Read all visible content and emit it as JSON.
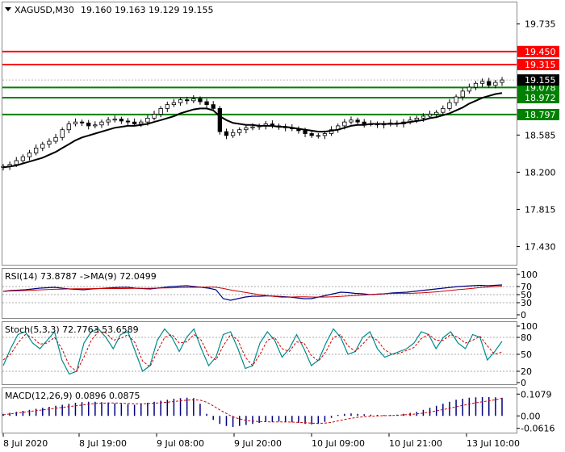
{
  "chart_data": {
    "type": "candlestick",
    "symbol_title": "XAGUSD,M30",
    "ohlc_text": "19.160 19.163 19.129 19.155",
    "time_labels": [
      "8 Jul 2020",
      "8 Jul 19:00",
      "9 Jul 08:00",
      "9 Jul 20:00",
      "10 Jul 09:00",
      "10 Jul 21:00",
      "13 Jul 10:00"
    ],
    "price_axis": {
      "ticks": [
        "19.735",
        "18.585",
        "18.200",
        "17.815",
        "17.430"
      ],
      "tick_values": [
        19.735,
        18.585,
        18.2,
        17.815,
        17.43
      ],
      "ylim": [
        17.25,
        19.95
      ]
    },
    "levels": [
      {
        "label": "19.450",
        "value": 19.45,
        "color": "#ff0000"
      },
      {
        "label": "19.315",
        "value": 19.315,
        "color": "#ff0000"
      },
      {
        "label": "19.078",
        "value": 19.078,
        "color": "#008000"
      },
      {
        "label": "18.972",
        "value": 18.972,
        "color": "#008000"
      },
      {
        "label": "18.797",
        "value": 18.797,
        "color": "#008000"
      }
    ],
    "current_price": {
      "label": "19.155",
      "value": 19.155
    },
    "price_series": [
      18.26,
      18.28,
      18.32,
      18.36,
      18.4,
      18.45,
      18.49,
      18.52,
      18.56,
      18.64,
      18.7,
      18.72,
      18.71,
      18.68,
      18.69,
      18.72,
      18.74,
      18.75,
      18.73,
      18.72,
      18.7,
      18.72,
      18.76,
      18.8,
      18.86,
      18.9,
      18.92,
      18.95,
      18.94,
      18.96,
      18.93,
      18.9,
      18.86,
      18.62,
      18.58,
      18.61,
      18.64,
      18.66,
      18.67,
      18.68,
      18.7,
      18.68,
      18.67,
      18.66,
      18.65,
      18.63,
      18.6,
      18.58,
      18.58,
      18.6,
      18.64,
      18.68,
      18.72,
      18.74,
      18.72,
      18.7,
      18.7,
      18.69,
      18.7,
      18.71,
      18.7,
      18.72,
      18.74,
      18.76,
      18.78,
      18.8,
      18.82,
      18.86,
      18.92,
      18.98,
      19.04,
      19.08,
      19.12,
      19.14,
      19.1,
      19.13,
      19.155
    ],
    "ma_series": [
      18.25,
      18.26,
      18.27,
      18.29,
      18.31,
      18.33,
      18.35,
      18.38,
      18.41,
      18.45,
      18.49,
      18.53,
      18.56,
      18.58,
      18.6,
      18.62,
      18.64,
      18.66,
      18.67,
      18.68,
      18.68,
      18.69,
      18.7,
      18.72,
      18.74,
      18.76,
      18.78,
      18.81,
      18.83,
      18.85,
      18.86,
      18.86,
      18.84,
      18.78,
      18.74,
      18.71,
      18.7,
      18.69,
      18.69,
      18.68,
      18.68,
      18.68,
      18.67,
      18.67,
      18.66,
      18.65,
      18.64,
      18.63,
      18.62,
      18.62,
      18.63,
      18.64,
      18.66,
      18.68,
      18.69,
      18.69,
      18.7,
      18.7,
      18.7,
      18.7,
      18.7,
      18.71,
      18.72,
      18.73,
      18.74,
      18.76,
      18.77,
      18.79,
      18.81,
      18.84,
      18.87,
      18.91,
      18.94,
      18.97,
      18.99,
      19.01,
      19.02
    ],
    "rsi": {
      "label": "RSI(14) 73.8787 ->MA(9) 72.0499",
      "ticks": [
        "100",
        "70",
        "50",
        "30",
        "0"
      ],
      "levels": [
        100,
        70,
        50,
        30,
        0
      ],
      "ylim": [
        0,
        100
      ],
      "value": 73.8787,
      "ma_value": 72.0499,
      "series": [
        58,
        60,
        61,
        62,
        64,
        66,
        67,
        68,
        66,
        64,
        63,
        62,
        64,
        65,
        66,
        67,
        68,
        68,
        66,
        65,
        64,
        66,
        68,
        70,
        71,
        72,
        70,
        68,
        66,
        62,
        40,
        36,
        40,
        44,
        46,
        46,
        47,
        46,
        45,
        44,
        42,
        40,
        40,
        44,
        48,
        52,
        56,
        55,
        53,
        52,
        50,
        51,
        52,
        54,
        55,
        56,
        58,
        60,
        62,
        64,
        66,
        68,
        70,
        71,
        72,
        73,
        72,
        73,
        74
      ]
    },
    "stoch": {
      "label": "Stoch(5,3,3) 72.7763 53.6589",
      "ticks": [
        "100",
        "80",
        "50",
        "20",
        "0"
      ],
      "levels": [
        100,
        80,
        50,
        20,
        0
      ],
      "ylim": [
        0,
        100
      ],
      "k_value": 72.7763,
      "d_value": 53.6589,
      "k": [
        30,
        60,
        85,
        90,
        70,
        60,
        75,
        90,
        40,
        15,
        20,
        70,
        90,
        95,
        80,
        60,
        85,
        90,
        55,
        20,
        30,
        75,
        95,
        80,
        55,
        80,
        95,
        60,
        30,
        45,
        85,
        90,
        60,
        25,
        30,
        70,
        90,
        75,
        45,
        60,
        85,
        60,
        30,
        40,
        70,
        95,
        80,
        50,
        55,
        80,
        90,
        60,
        45,
        50,
        55,
        60,
        70,
        90,
        85,
        60,
        80,
        90,
        70,
        60,
        85,
        80,
        40,
        55,
        73
      ],
      "d": [
        40,
        50,
        70,
        85,
        80,
        68,
        70,
        80,
        60,
        30,
        20,
        45,
        75,
        90,
        88,
        75,
        78,
        85,
        70,
        38,
        28,
        55,
        80,
        85,
        70,
        72,
        85,
        75,
        48,
        40,
        65,
        85,
        75,
        45,
        30,
        50,
        75,
        80,
        60,
        55,
        72,
        70,
        48,
        38,
        55,
        80,
        85,
        65,
        55,
        68,
        82,
        75,
        58,
        50,
        52,
        57,
        62,
        78,
        85,
        75,
        75,
        85,
        80,
        70,
        75,
        82,
        65,
        50,
        54
      ]
    },
    "macd": {
      "label": "MACD(12,26,9) 0.0896 0.0875",
      "ticks": [
        "0.1079",
        "0.00",
        "-0.0616"
      ],
      "ylim": [
        -0.075,
        0.125
      ],
      "macd_value": 0.0896,
      "signal_value": 0.0875,
      "histogram": [
        0.01,
        0.015,
        0.02,
        0.025,
        0.03,
        0.035,
        0.04,
        0.045,
        0.05,
        0.055,
        0.06,
        0.065,
        0.068,
        0.07,
        0.07,
        0.068,
        0.066,
        0.062,
        0.06,
        0.058,
        0.055,
        0.06,
        0.065,
        0.07,
        0.075,
        0.08,
        0.085,
        0.088,
        0.09,
        0.088,
        0.06,
        0.01,
        -0.02,
        -0.04,
        -0.05,
        -0.055,
        -0.05,
        -0.045,
        -0.04,
        -0.035,
        -0.03,
        -0.03,
        -0.028,
        -0.03,
        -0.032,
        -0.035,
        -0.04,
        -0.042,
        -0.04,
        -0.03,
        -0.01,
        0.005,
        0.01,
        0.012,
        0.01,
        0.008,
        0.006,
        0.005,
        0.004,
        0.005,
        0.006,
        0.01,
        0.015,
        0.02,
        0.03,
        0.04,
        0.05,
        0.06,
        0.07,
        0.08,
        0.085,
        0.09,
        0.092,
        0.093,
        0.093,
        0.092,
        0.0896
      ],
      "signal": [
        0.005,
        0.01,
        0.014,
        0.018,
        0.022,
        0.026,
        0.03,
        0.034,
        0.038,
        0.042,
        0.046,
        0.05,
        0.054,
        0.058,
        0.061,
        0.063,
        0.064,
        0.064,
        0.063,
        0.062,
        0.06,
        0.06,
        0.061,
        0.063,
        0.065,
        0.068,
        0.071,
        0.075,
        0.078,
        0.08,
        0.078,
        0.068,
        0.05,
        0.03,
        0.012,
        -0.005,
        -0.015,
        -0.022,
        -0.026,
        -0.028,
        -0.029,
        -0.03,
        -0.03,
        -0.03,
        -0.031,
        -0.032,
        -0.034,
        -0.036,
        -0.037,
        -0.036,
        -0.032,
        -0.025,
        -0.018,
        -0.012,
        -0.007,
        -0.004,
        -0.002,
        0,
        0.001,
        0.002,
        0.003,
        0.005,
        0.007,
        0.01,
        0.014,
        0.019,
        0.025,
        0.031,
        0.038,
        0.045,
        0.052,
        0.059,
        0.065,
        0.07,
        0.075,
        0.08,
        0.0875
      ]
    }
  }
}
